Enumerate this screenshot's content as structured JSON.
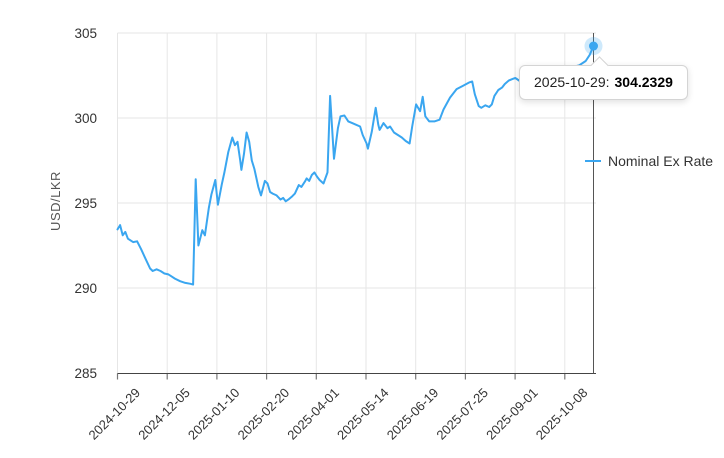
{
  "chart": {
    "y_axis_title": "USD/LKR",
    "legend_label": "Nominal Ex Rate",
    "tooltip": {
      "label": "2025-10-29:",
      "value": "304.2329"
    },
    "colors": {
      "line": "#3aa6f0",
      "halo": "rgba(58,166,240,0.25)",
      "gridline": "#e6e6e6",
      "axis_line": "#444444",
      "tick": "#777777",
      "label_text": "#333333",
      "crosshair": "#555555"
    }
  },
  "chart_data": {
    "type": "line",
    "title": "",
    "xlabel": "",
    "ylabel": "USD/LKR",
    "ylim": [
      285,
      305
    ],
    "y_ticks": [
      285,
      290,
      295,
      300,
      305
    ],
    "x_tick_labels": [
      "2024-10-29",
      "2024-12-05",
      "2025-01-10",
      "2025-02-20",
      "2025-04-01",
      "2025-05-14",
      "2025-06-19",
      "2025-07-25",
      "2025-09-01",
      "2025-10-08"
    ],
    "x_range": [
      "2024-10-29",
      "2025-10-29"
    ],
    "grid": true,
    "legend_position": "right",
    "crosshair_point": {
      "date": "2025-10-29",
      "value": 304.2329
    },
    "series": [
      {
        "name": "Nominal Ex Rate",
        "points": [
          [
            "2024-10-29",
            293.45
          ],
          [
            "2024-10-31",
            293.7
          ],
          [
            "2024-11-02",
            293.1
          ],
          [
            "2024-11-04",
            293.3
          ],
          [
            "2024-11-06",
            292.9
          ],
          [
            "2024-11-10",
            292.7
          ],
          [
            "2024-11-13",
            292.75
          ],
          [
            "2024-11-16",
            292.3
          ],
          [
            "2024-11-19",
            291.8
          ],
          [
            "2024-11-23",
            291.15
          ],
          [
            "2024-11-25",
            291.0
          ],
          [
            "2024-11-28",
            291.1
          ],
          [
            "2024-12-01",
            291.0
          ],
          [
            "2024-12-04",
            290.85
          ],
          [
            "2024-12-07",
            290.8
          ],
          [
            "2024-12-09",
            290.7
          ],
          [
            "2024-12-12",
            290.55
          ],
          [
            "2024-12-16",
            290.4
          ],
          [
            "2024-12-20",
            290.3
          ],
          [
            "2024-12-24",
            290.25
          ],
          [
            "2024-12-26",
            290.2
          ],
          [
            "2024-12-28",
            296.4
          ],
          [
            "2024-12-30",
            292.5
          ],
          [
            "2025-01-02",
            293.4
          ],
          [
            "2025-01-04",
            293.1
          ],
          [
            "2025-01-07",
            294.7
          ],
          [
            "2025-01-09",
            295.5
          ],
          [
            "2025-01-12",
            296.35
          ],
          [
            "2025-01-14",
            294.9
          ],
          [
            "2025-01-17",
            296.1
          ],
          [
            "2025-01-19",
            296.8
          ],
          [
            "2025-01-22",
            298.0
          ],
          [
            "2025-01-25",
            298.85
          ],
          [
            "2025-01-27",
            298.4
          ],
          [
            "2025-01-29",
            298.6
          ],
          [
            "2025-01-31",
            297.55
          ],
          [
            "2025-02-01",
            296.95
          ],
          [
            "2025-02-03",
            297.9
          ],
          [
            "2025-02-05",
            299.15
          ],
          [
            "2025-02-07",
            298.6
          ],
          [
            "2025-02-09",
            297.5
          ],
          [
            "2025-02-11",
            297.0
          ],
          [
            "2025-02-14",
            295.95
          ],
          [
            "2025-02-16",
            295.45
          ],
          [
            "2025-02-19",
            296.3
          ],
          [
            "2025-02-21",
            296.15
          ],
          [
            "2025-02-23",
            295.65
          ],
          [
            "2025-02-25",
            295.55
          ],
          [
            "2025-02-28",
            295.45
          ],
          [
            "2025-03-03",
            295.2
          ],
          [
            "2025-03-05",
            295.3
          ],
          [
            "2025-03-07",
            295.1
          ],
          [
            "2025-03-09",
            295.2
          ],
          [
            "2025-03-12",
            295.4
          ],
          [
            "2025-03-14",
            295.55
          ],
          [
            "2025-03-17",
            296.05
          ],
          [
            "2025-03-19",
            295.95
          ],
          [
            "2025-03-22",
            296.3
          ],
          [
            "2025-03-23",
            296.45
          ],
          [
            "2025-03-25",
            296.3
          ],
          [
            "2025-03-27",
            296.65
          ],
          [
            "2025-03-29",
            296.8
          ],
          [
            "2025-03-31",
            296.55
          ],
          [
            "2025-04-02",
            296.35
          ],
          [
            "2025-04-05",
            296.15
          ],
          [
            "2025-04-08",
            296.8
          ],
          [
            "2025-04-10",
            301.3
          ],
          [
            "2025-04-13",
            297.6
          ],
          [
            "2025-04-16",
            299.4
          ],
          [
            "2025-04-18",
            300.1
          ],
          [
            "2025-04-21",
            300.15
          ],
          [
            "2025-04-24",
            299.8
          ],
          [
            "2025-04-27",
            299.7
          ],
          [
            "2025-04-30",
            299.6
          ],
          [
            "2025-05-03",
            299.5
          ],
          [
            "2025-05-05",
            299.0
          ],
          [
            "2025-05-08",
            298.5
          ],
          [
            "2025-05-09",
            298.2
          ],
          [
            "2025-05-12",
            299.2
          ],
          [
            "2025-05-15",
            300.6
          ],
          [
            "2025-05-17",
            299.6
          ],
          [
            "2025-05-18",
            299.3
          ],
          [
            "2025-05-21",
            299.7
          ],
          [
            "2025-05-24",
            299.4
          ],
          [
            "2025-05-26",
            299.5
          ],
          [
            "2025-05-29",
            299.15
          ],
          [
            "2025-06-01",
            299.0
          ],
          [
            "2025-06-04",
            298.85
          ],
          [
            "2025-06-07",
            298.65
          ],
          [
            "2025-06-10",
            298.5
          ],
          [
            "2025-06-12",
            299.5
          ],
          [
            "2025-06-15",
            300.8
          ],
          [
            "2025-06-18",
            300.4
          ],
          [
            "2025-06-20",
            301.25
          ],
          [
            "2025-06-22",
            300.1
          ],
          [
            "2025-06-25",
            299.8
          ],
          [
            "2025-06-29",
            299.8
          ],
          [
            "2025-07-03",
            299.9
          ],
          [
            "2025-07-06",
            300.5
          ],
          [
            "2025-07-11",
            301.2
          ],
          [
            "2025-07-16",
            301.7
          ],
          [
            "2025-07-21",
            301.9
          ],
          [
            "2025-07-26",
            302.1
          ],
          [
            "2025-07-28",
            302.15
          ],
          [
            "2025-07-30",
            301.4
          ],
          [
            "2025-08-02",
            300.7
          ],
          [
            "2025-08-04",
            300.6
          ],
          [
            "2025-08-07",
            300.75
          ],
          [
            "2025-08-10",
            300.65
          ],
          [
            "2025-08-12",
            300.8
          ],
          [
            "2025-08-14",
            301.3
          ],
          [
            "2025-08-17",
            301.65
          ],
          [
            "2025-08-20",
            301.8
          ],
          [
            "2025-08-22",
            302.0
          ],
          [
            "2025-08-25",
            302.2
          ],
          [
            "2025-08-28",
            302.3
          ],
          [
            "2025-08-30",
            302.35
          ],
          [
            "2025-09-03",
            302.15
          ],
          [
            "2025-09-07",
            302.3
          ],
          [
            "2025-09-12",
            302.45
          ],
          [
            "2025-09-17",
            302.4
          ],
          [
            "2025-09-22",
            302.55
          ],
          [
            "2025-09-27",
            302.7
          ],
          [
            "2025-10-03",
            302.8
          ],
          [
            "2025-10-08",
            302.9
          ],
          [
            "2025-10-13",
            303.0
          ],
          [
            "2025-10-18",
            303.1
          ],
          [
            "2025-10-23",
            303.35
          ],
          [
            "2025-10-26",
            303.7
          ],
          [
            "2025-10-29",
            304.2329
          ]
        ]
      }
    ]
  }
}
